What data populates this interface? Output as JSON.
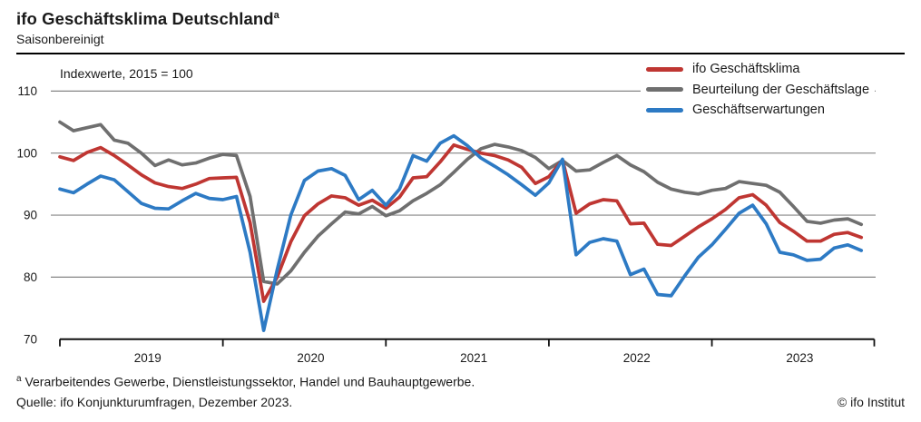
{
  "header": {
    "title": "ifo Geschäftsklima Deutschland",
    "title_footnote_marker": "a",
    "subtitle": "Saisonbereinigt"
  },
  "footer": {
    "footnote_marker": "a",
    "footnote_text": " Verarbeitendes Gewerbe, Dienstleistungssektor, Handel und Bauhauptgewerbe.",
    "source": "Quelle: ifo Konjunkturumfragen, Dezember 2023.",
    "copyright": "© ifo Institut"
  },
  "chart_data": {
    "type": "line",
    "title": "ifo Geschäftsklima Deutschland",
    "subtitle": "Saisonbereinigt",
    "unit_note": "Indexwerte, 2015 = 100",
    "frequency": "monthly",
    "x_start": "2019-01",
    "x_end": "2023-12",
    "x_tick_years": [
      "2019",
      "2020",
      "2021",
      "2022",
      "2023"
    ],
    "ylim": [
      70,
      110
    ],
    "y_ticks": [
      70,
      80,
      90,
      100,
      110
    ],
    "grid": true,
    "legend_position": "top-right",
    "grid_color": "#868686",
    "axis_color": "#111111",
    "text_color": "#1a1a1a",
    "series": [
      {
        "key": "klima",
        "name": "ifo Geschäftsklima",
        "color": "#bf3632",
        "values": [
          99.4,
          98.8,
          100.1,
          100.9,
          99.6,
          98.1,
          96.5,
          95.2,
          94.6,
          94.3,
          95.0,
          95.9,
          96.0,
          96.1,
          88.8,
          76.1,
          80.0,
          85.7,
          89.9,
          91.8,
          93.1,
          92.8,
          91.6,
          92.4,
          91.1,
          92.9,
          96.0,
          96.2,
          98.6,
          101.3,
          100.6,
          100.0,
          99.6,
          98.9,
          97.7,
          95.1,
          96.2,
          98.9,
          90.3,
          91.8,
          92.5,
          92.3,
          88.6,
          88.7,
          85.3,
          85.1,
          86.6,
          88.1,
          89.4,
          90.9,
          92.8,
          93.3,
          91.6,
          88.8,
          87.4,
          85.8,
          85.8,
          86.9,
          87.2,
          86.4
        ]
      },
      {
        "key": "lage",
        "name": "Beurteilung der Geschäftslage",
        "color": "#6f6f6f",
        "values": [
          105.0,
          103.6,
          104.1,
          104.6,
          102.1,
          101.6,
          100.0,
          98.0,
          98.9,
          98.1,
          98.4,
          99.2,
          99.8,
          99.6,
          93.0,
          79.3,
          78.9,
          81.0,
          84.0,
          86.6,
          88.6,
          90.5,
          90.2,
          91.4,
          89.9,
          90.7,
          92.3,
          93.5,
          94.9,
          96.9,
          99.0,
          100.7,
          101.4,
          101.0,
          100.4,
          99.3,
          97.5,
          98.8,
          97.1,
          97.3,
          98.5,
          99.6,
          98.1,
          97.0,
          95.3,
          94.2,
          93.7,
          93.4,
          94.0,
          94.3,
          95.4,
          95.1,
          94.8,
          93.7,
          91.4,
          89.0,
          88.7,
          89.2,
          89.4,
          88.5
        ]
      },
      {
        "key": "erwartungen",
        "name": "Geschäftserwartungen",
        "color": "#2d7ac4",
        "values": [
          94.2,
          93.6,
          95.0,
          96.3,
          95.7,
          93.8,
          91.9,
          91.1,
          91.0,
          92.3,
          93.5,
          92.7,
          92.5,
          93.0,
          84.0,
          71.4,
          81.2,
          90.0,
          95.6,
          97.1,
          97.5,
          96.4,
          92.5,
          94.0,
          91.6,
          94.2,
          99.6,
          98.7,
          101.6,
          102.8,
          101.2,
          99.2,
          97.9,
          96.5,
          94.9,
          93.2,
          95.2,
          99.0,
          83.6,
          85.6,
          86.2,
          85.8,
          80.4,
          81.3,
          77.2,
          77.0,
          80.2,
          83.2,
          85.2,
          87.7,
          90.3,
          91.6,
          88.6,
          84.0,
          83.6,
          82.7,
          82.9,
          84.7,
          85.2,
          84.3
        ]
      }
    ]
  }
}
